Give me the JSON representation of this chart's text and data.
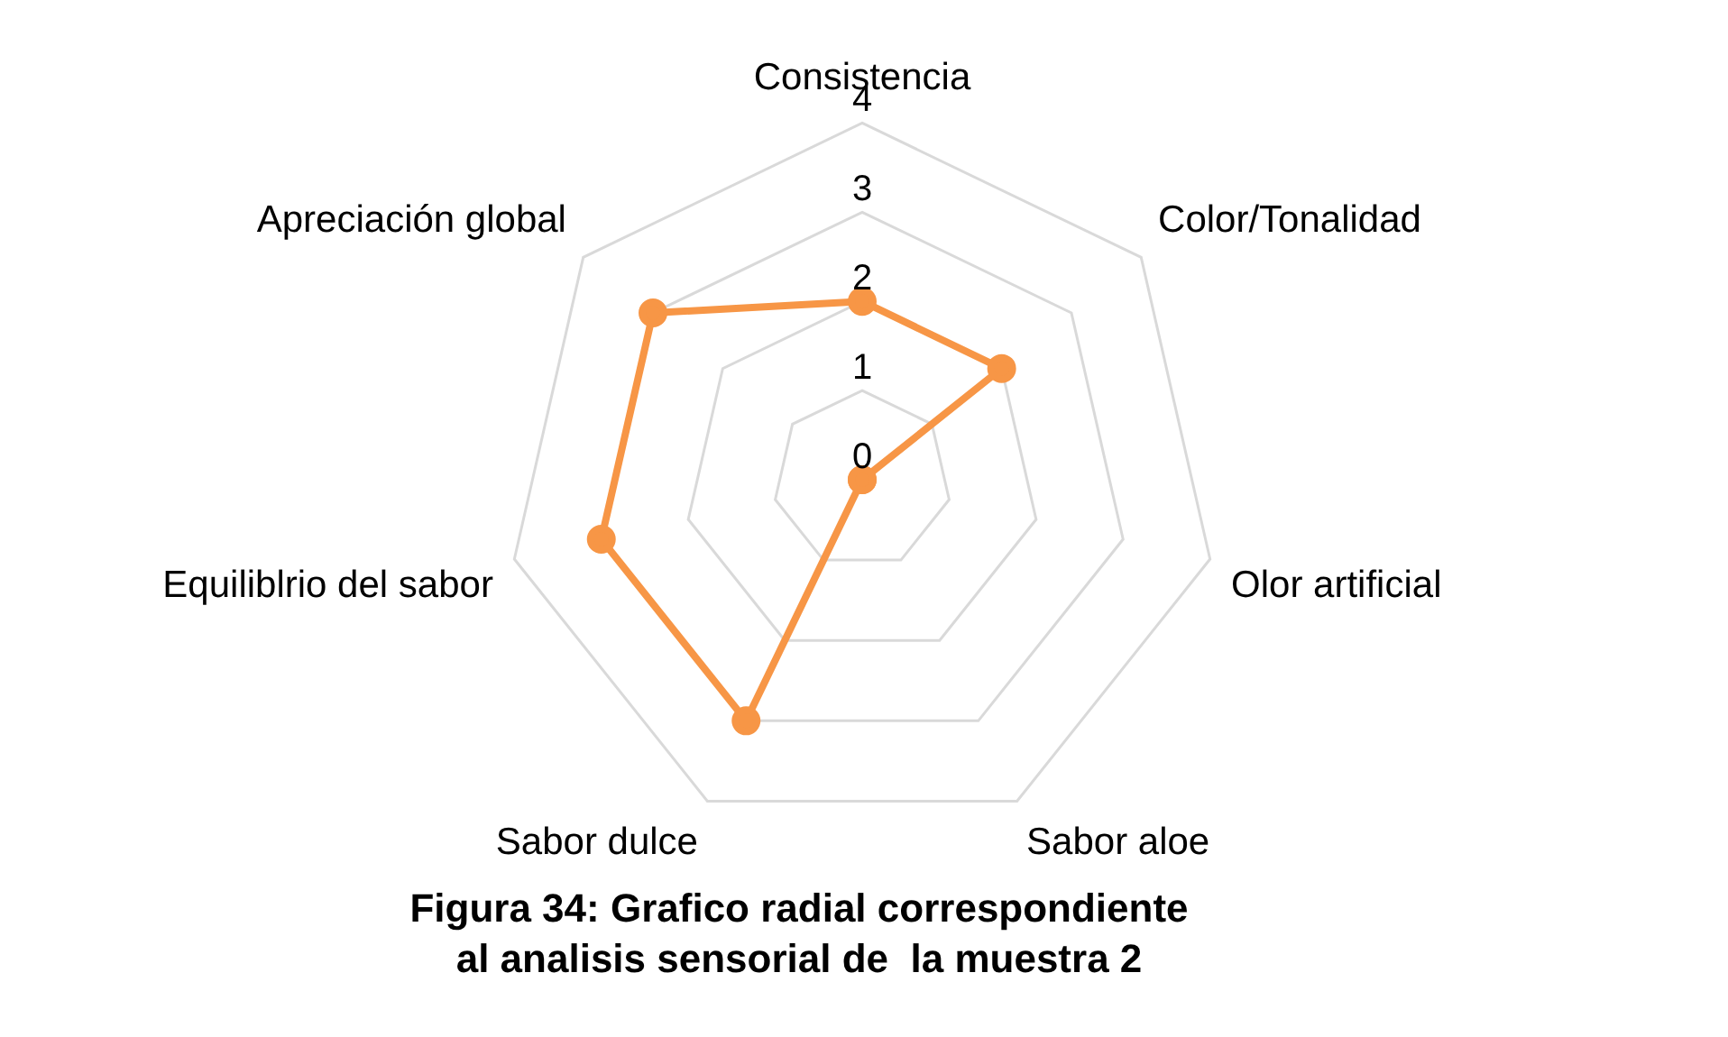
{
  "chart_data": {
    "type": "radar",
    "title": "Figura 34: Grafico radial correspondiente al analisis sensorial de  la muestra 2",
    "categories": [
      "Consistencia",
      "Color/Tonalidad",
      "Olor artificial",
      "Sabor aloe",
      "Sabor dulce",
      "Equiliblrio del sabor",
      "Apreciación global"
    ],
    "series": [
      {
        "color": "#f79646",
        "values": [
          2,
          2,
          0,
          0,
          3,
          3,
          3
        ]
      }
    ],
    "ylim": [
      0,
      4
    ],
    "yticks": [
      0,
      1,
      2,
      3,
      4
    ],
    "grid": true,
    "legend": false,
    "marker": "circle",
    "line_style": "solid"
  }
}
